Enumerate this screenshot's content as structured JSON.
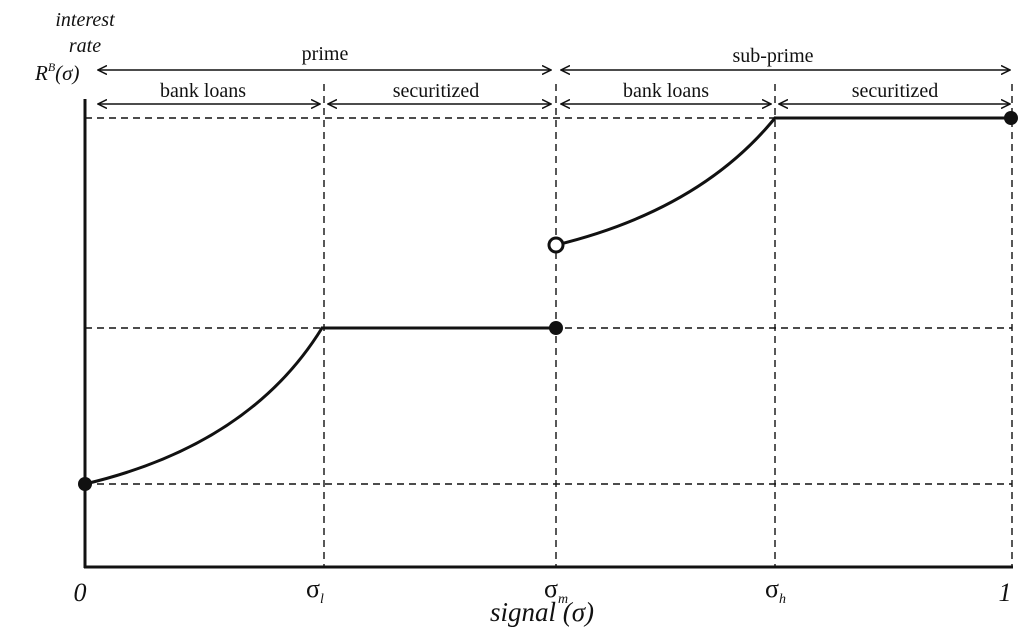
{
  "y_axis": {
    "label_line1": "interest",
    "label_line2": "rate",
    "label_R": "R",
    "label_sup": "B",
    "label_arg": "(σ)"
  },
  "x_axis": {
    "title": "signal (σ)",
    "ticks": [
      {
        "key": "0",
        "base": "0",
        "sub": ""
      },
      {
        "key": "sigma-l",
        "base": "σ",
        "sub": "l"
      },
      {
        "key": "sigma-m",
        "base": "σ",
        "sub": "m"
      },
      {
        "key": "sigma-h",
        "base": "σ",
        "sub": "h"
      },
      {
        "key": "1",
        "base": "1",
        "sub": ""
      }
    ]
  },
  "regions": {
    "prime": "prime",
    "sub_prime": "sub-prime",
    "prime_bank_loans": "bank loans",
    "prime_securitized": "securitized",
    "subprime_bank_loans": "bank loans",
    "subprime_securitized": "securitized"
  },
  "chart_data": {
    "type": "line",
    "x_scale": {
      "0": 0,
      "sigma_l": 0.27,
      "sigma_m": 0.53,
      "sigma_h": 0.75,
      "1": 1
    },
    "y_range": [
      0,
      1
    ],
    "levels": {
      "low": 0.18,
      "mid": 0.53,
      "sub_start": 0.71,
      "high": 1.0
    },
    "segments": [
      {
        "name": "prime bank loans",
        "shape": "convex",
        "from": [
          0,
          0.18
        ],
        "to": [
          0.27,
          0.53
        ]
      },
      {
        "name": "prime securitized",
        "shape": "flat",
        "from": [
          0.27,
          0.53
        ],
        "to": [
          0.53,
          0.53
        ]
      },
      {
        "name": "sub-prime bank loans",
        "shape": "concave-up",
        "from": [
          0.53,
          0.71
        ],
        "to": [
          0.75,
          1.0
        ]
      },
      {
        "name": "sub-prime securitized",
        "shape": "flat",
        "from": [
          0.75,
          1.0
        ],
        "to": [
          1,
          1.0
        ]
      }
    ],
    "points": [
      {
        "at": [
          0,
          0.18
        ],
        "filled": true
      },
      {
        "at": [
          0.53,
          0.53
        ],
        "filled": true
      },
      {
        "at": [
          0.53,
          0.71
        ],
        "filled": false
      },
      {
        "at": [
          1,
          1.0
        ],
        "filled": true
      }
    ]
  }
}
